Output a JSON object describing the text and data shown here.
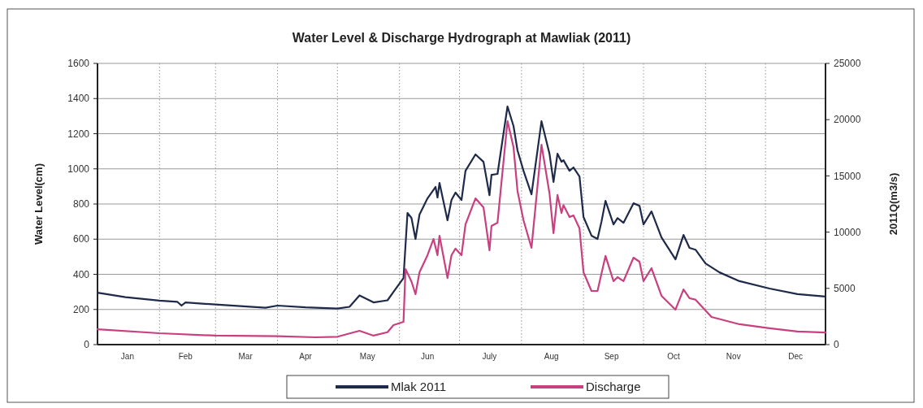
{
  "chart_data": {
    "type": "line",
    "title": "Water Level & Discharge Hydrograph at Mawliak (2011)",
    "ylabel": "Water Level(cm)",
    "y2label": "2011Q(m3/s)",
    "xlim": [
      "2011-01-01",
      "2011-12-31"
    ],
    "xticks": [
      {
        "value": "2011-01-01",
        "label": null
      },
      {
        "value": "2011-01-16",
        "label": "Jan"
      },
      {
        "value": "2011-02-01",
        "label": null
      },
      {
        "value": "2011-02-14",
        "label": "Feb"
      },
      {
        "value": "2011-03-01",
        "label": null
      },
      {
        "value": "2011-03-16",
        "label": "Mar"
      },
      {
        "value": "2011-04-01",
        "label": null
      },
      {
        "value": "2011-04-15",
        "label": "Apr"
      },
      {
        "value": "2011-05-01",
        "label": null
      },
      {
        "value": "2011-05-16",
        "label": "May"
      },
      {
        "value": "2011-06-01",
        "label": null
      },
      {
        "value": "2011-06-15",
        "label": "Jun"
      },
      {
        "value": "2011-07-01",
        "label": null
      },
      {
        "value": "2011-07-16",
        "label": "July"
      },
      {
        "value": "2011-08-01",
        "label": null
      },
      {
        "value": "2011-08-16",
        "label": "Aug"
      },
      {
        "value": "2011-09-01",
        "label": null
      },
      {
        "value": "2011-09-15",
        "label": "Sep"
      },
      {
        "value": "2011-10-01",
        "label": null
      },
      {
        "value": "2011-10-16",
        "label": "Oct"
      },
      {
        "value": "2011-11-01",
        "label": null
      },
      {
        "value": "2011-11-15",
        "label": "Nov"
      },
      {
        "value": "2011-12-01",
        "label": null
      },
      {
        "value": "2011-12-16",
        "label": "Dec"
      }
    ],
    "ylim": [
      0,
      1600
    ],
    "yticks": [
      0,
      200,
      400,
      600,
      800,
      1000,
      1200,
      1400,
      1600
    ],
    "y2lim": [
      0,
      25000
    ],
    "y2ticks": [
      0,
      5000,
      10000,
      15000,
      20000,
      25000
    ],
    "grid": true,
    "legend": "bottom",
    "line_style": "solid",
    "marker": "none",
    "series": [
      {
        "name": "Mlak 2011",
        "color": "#1f2a4a",
        "x": [
          "2011-01-01",
          "2011-01-15",
          "2011-02-01",
          "2011-02-10",
          "2011-02-12",
          "2011-02-14",
          "2011-03-01",
          "2011-03-15",
          "2011-03-26",
          "2011-04-01",
          "2011-04-15",
          "2011-05-01",
          "2011-05-07",
          "2011-05-12",
          "2011-05-19",
          "2011-05-26",
          "2011-05-29",
          "2011-06-03",
          "2011-06-05",
          "2011-06-07",
          "2011-06-09",
          "2011-06-11",
          "2011-06-15",
          "2011-06-19",
          "2011-06-20",
          "2011-06-21",
          "2011-06-25",
          "2011-06-27",
          "2011-06-29",
          "2011-07-02",
          "2011-07-04",
          "2011-07-09",
          "2011-07-13",
          "2011-07-16",
          "2011-07-17",
          "2011-07-20",
          "2011-07-25",
          "2011-07-28",
          "2011-07-30",
          "2011-08-02",
          "2011-08-06",
          "2011-08-11",
          "2011-08-15",
          "2011-08-17",
          "2011-08-19",
          "2011-08-21",
          "2011-08-22",
          "2011-08-25",
          "2011-08-27",
          "2011-08-30",
          "2011-09-01",
          "2011-09-05",
          "2011-09-08",
          "2011-09-10",
          "2011-09-12",
          "2011-09-16",
          "2011-09-18",
          "2011-09-21",
          "2011-09-26",
          "2011-09-29",
          "2011-10-01",
          "2011-10-05",
          "2011-10-10",
          "2011-10-17",
          "2011-10-21",
          "2011-10-24",
          "2011-10-27",
          "2011-11-01",
          "2011-11-08",
          "2011-11-18",
          "2011-12-03",
          "2011-12-17",
          "2011-12-31"
        ],
        "values": [
          295,
          270,
          250,
          243,
          222,
          240,
          228,
          218,
          210,
          222,
          212,
          205,
          215,
          280,
          240,
          252,
          300,
          379,
          749,
          720,
          601,
          740,
          832,
          897,
          837,
          920,
          707,
          823,
          865,
          823,
          989,
          1082,
          1040,
          850,
          966,
          971,
          1355,
          1244,
          1105,
          989,
          855,
          1271,
          1086,
          925,
          1086,
          1040,
          1049,
          989,
          1008,
          957,
          726,
          620,
          601,
          700,
          818,
          684,
          720,
          693,
          804,
          790,
          684,
          758,
          610,
          485,
          624,
          550,
          540,
          462,
          411,
          361,
          319,
          287,
          273
        ]
      },
      {
        "name": "Discharge",
        "color": "#c8407f",
        "axis": "y2",
        "x": [
          "2011-01-01",
          "2011-02-01",
          "2011-03-01",
          "2011-04-01",
          "2011-04-20",
          "2011-05-01",
          "2011-05-12",
          "2011-05-19",
          "2011-05-26",
          "2011-05-29",
          "2011-06-03",
          "2011-06-04",
          "2011-06-07",
          "2011-06-09",
          "2011-06-11",
          "2011-06-15",
          "2011-06-18",
          "2011-06-20",
          "2011-06-21",
          "2011-06-25",
          "2011-06-27",
          "2011-06-29",
          "2011-07-02",
          "2011-07-04",
          "2011-07-09",
          "2011-07-13",
          "2011-07-16",
          "2011-07-17",
          "2011-07-20",
          "2011-07-25",
          "2011-07-28",
          "2011-07-30",
          "2011-08-02",
          "2011-08-06",
          "2011-08-11",
          "2011-08-15",
          "2011-08-17",
          "2011-08-19",
          "2011-08-21",
          "2011-08-22",
          "2011-08-25",
          "2011-08-27",
          "2011-08-30",
          "2011-09-01",
          "2011-09-05",
          "2011-09-08",
          "2011-09-12",
          "2011-09-16",
          "2011-09-18",
          "2011-09-21",
          "2011-09-26",
          "2011-09-29",
          "2011-10-01",
          "2011-10-05",
          "2011-10-10",
          "2011-10-17",
          "2011-10-21",
          "2011-10-24",
          "2011-10-27",
          "2011-11-04",
          "2011-11-18",
          "2011-12-03",
          "2011-12-17",
          "2011-12-31"
        ],
        "values": [
          1370,
          1010,
          800,
          750,
          650,
          700,
          1230,
          800,
          1100,
          1730,
          2020,
          6720,
          5600,
          4480,
          6430,
          7950,
          9390,
          7950,
          9680,
          5920,
          7950,
          8530,
          7950,
          10690,
          13000,
          12200,
          8380,
          10550,
          10840,
          19870,
          17560,
          13660,
          11050,
          8600,
          17770,
          13440,
          9900,
          13300,
          11700,
          12400,
          11340,
          11480,
          10330,
          6430,
          4770,
          4770,
          7880,
          5640,
          6000,
          5640,
          7730,
          7370,
          5640,
          6790,
          4340,
          3110,
          4910,
          4120,
          4000,
          2460,
          1810,
          1450,
          1160,
          1080
        ]
      }
    ]
  }
}
